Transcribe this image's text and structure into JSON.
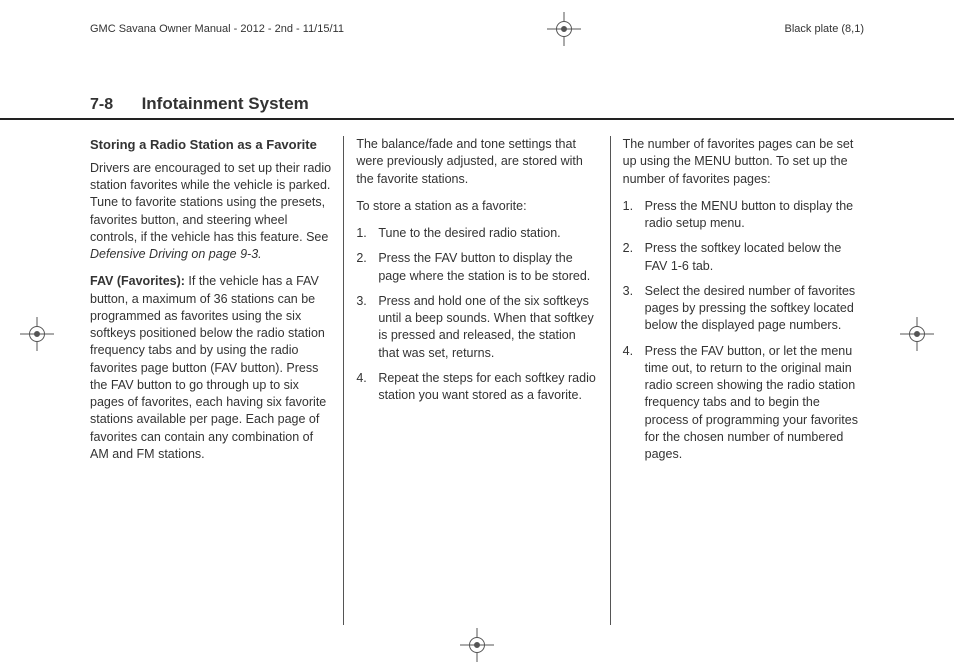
{
  "meta": {
    "left_header": "GMC Savana Owner Manual - 2012 - 2nd - 11/15/11",
    "right_header": "Black plate (8,1)"
  },
  "title": {
    "page_number": "7-8",
    "chapter": "Infotainment System"
  },
  "col1": {
    "subhead": "Storing a Radio Station as a Favorite",
    "p1": "Drivers are encouraged to set up their radio station favorites while the vehicle is parked. Tune to favorite stations using the presets, favorites button, and steering wheel controls, if the vehicle has this feature. See ",
    "p1_ref": "Defensive Driving on page 9-3.",
    "runin": "FAV (Favorites):",
    "p2": "  If the vehicle has a FAV button, a maximum of 36 stations can be programmed as favorites using the six softkeys positioned below the radio station frequency tabs and by using the radio favorites page button (FAV button). Press the FAV button to go through up to six pages of favorites, each having six favorite stations available per page. Each page of favorites can contain any combination of AM and FM stations."
  },
  "col2": {
    "p1": "The balance/fade and tone settings that were previously adjusted, are stored with the favorite stations.",
    "lead": "To store a station as a favorite:",
    "steps": [
      "Tune to the desired radio station.",
      "Press the FAV button to display the page where the station is to be stored.",
      "Press and hold one of the six softkeys until a beep sounds. When that softkey is pressed and released, the station that was set, returns.",
      "Repeat the steps for each softkey radio station you want stored as a favorite."
    ]
  },
  "col3": {
    "p1": "The number of favorites pages can be set up using the MENU button. To set up the number of favorites pages:",
    "steps": [
      "Press the MENU button to display the radio setup menu.",
      "Press the softkey located below the FAV 1-6 tab.",
      "Select the desired number of favorites pages by pressing the softkey located below the displayed page numbers.",
      "Press the FAV button, or let the menu time out, to return to the original main radio screen showing the radio station frequency tabs and to begin the process of programming your favorites for the chosen number of numbered pages."
    ]
  }
}
